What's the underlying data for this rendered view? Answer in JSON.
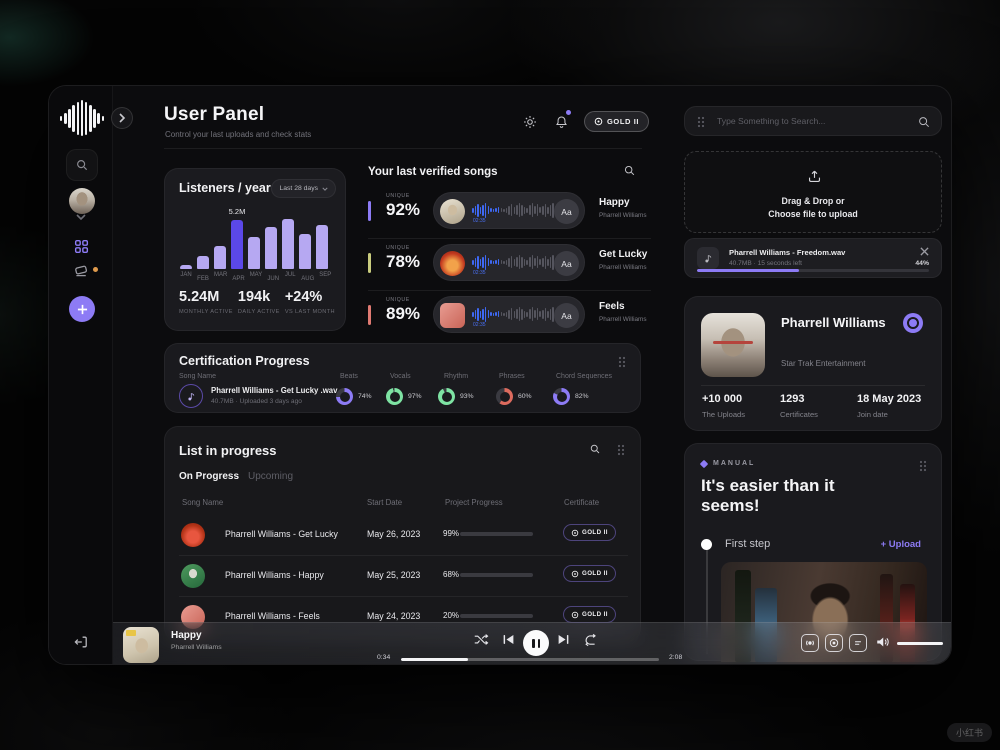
{
  "header": {
    "title": "User Panel",
    "subtitle": "Control your last uploads and check stats",
    "badge": "GOLD II"
  },
  "listeners": {
    "title": "Listeners / year",
    "range": "Last 28 days",
    "chart_data": {
      "type": "bar",
      "categories": [
        "JAN",
        "FEB",
        "MAR",
        "APR",
        "MAY",
        "JUN",
        "JUL",
        "AUG",
        "SEP"
      ],
      "values": [
        0.4,
        1.4,
        2.5,
        5.2,
        3.4,
        4.4,
        5.3,
        3.7,
        4.7
      ],
      "unit": "M listeners",
      "highlight_index": 3,
      "highlight_label": "5.2M",
      "title": "Listeners / year",
      "xlabel": "",
      "ylabel": "",
      "ylim": [
        0,
        5.5
      ],
      "grid": false,
      "bar_color": "#B6A8F2",
      "highlight_color": "#5B48E8"
    },
    "stats": [
      {
        "value": "5.24M",
        "label": "MONTHLY ACTIVE"
      },
      {
        "value": "194k",
        "label": "DAILY ACTIVE"
      },
      {
        "value": "+24%",
        "label": "VS LAST MONTH"
      }
    ]
  },
  "verified": {
    "title": "Your last verified songs",
    "unique_label": "UNIQUE",
    "aa_label": "Aa",
    "songs": [
      {
        "unique": "92%",
        "time": "02:35",
        "title": "Happy",
        "artist": "Pharrell Williams",
        "accent": "#8D7BF5"
      },
      {
        "unique": "78%",
        "time": "02:35",
        "title": "Get Lucky",
        "artist": "Pharrell Williams",
        "accent": "#C9CC7E"
      },
      {
        "unique": "89%",
        "time": "02:35",
        "title": "Feels",
        "artist": "Pharrell Williams",
        "accent": "#E07A72"
      }
    ]
  },
  "certification": {
    "title": "Certification Progress",
    "song_col": "Song Name",
    "file": "Pharrell Williams - Get Lucky .wav",
    "meta": "40.7MB · Uploaded 3 days ago",
    "rings": [
      {
        "label": "Beats",
        "pct": 74,
        "pct_label": "74%",
        "color": "#8D7BF5"
      },
      {
        "label": "Vocals",
        "pct": 97,
        "pct_label": "97%",
        "color": "#7EE3A3"
      },
      {
        "label": "Rhythm",
        "pct": 93,
        "pct_label": "93%",
        "color": "#7EE3A3"
      },
      {
        "label": "Phrases",
        "pct": 60,
        "pct_label": "60%",
        "color": "#DD6B5E"
      },
      {
        "label": "Chord Sequences",
        "pct": 82,
        "pct_label": "82%",
        "color": "#8D7BF5"
      }
    ]
  },
  "list": {
    "title": "List in progress",
    "tabs": [
      "On Progress",
      "Upcoming"
    ],
    "columns": [
      "Song Name",
      "Start Date",
      "Project Progress",
      "Certificate"
    ],
    "rows": [
      {
        "song": "Pharrell Williams - Get Lucky",
        "date": "May 26, 2023",
        "pct": 99,
        "pct_label": "99%",
        "color": "#C7B9F2",
        "badge": "GOLD II"
      },
      {
        "song": "Pharrell Williams - Happy",
        "date": "May 25, 2023",
        "pct": 68,
        "pct_label": "68%",
        "color": "#8BE6A8",
        "badge": "GOLD II"
      },
      {
        "song": "Pharrell Williams - Feels",
        "date": "May 24, 2023",
        "pct": 20,
        "pct_label": "20%",
        "color": "#C7B9F2",
        "badge": "GOLD II"
      }
    ]
  },
  "search": {
    "placeholder": "Type Something to Search..."
  },
  "upload": {
    "line1": "Drag & Drop or",
    "line2": "Choose file to upload",
    "file": "Pharrell Williams - Freedom.wav",
    "meta": "40.7MB · 15 seconds left",
    "pct_label": "44%",
    "pct": 44
  },
  "profile": {
    "name": "Pharrell Williams",
    "org": "Star Trak Entertainment",
    "stats": [
      {
        "value": "+10 000",
        "label": "The Uploads"
      },
      {
        "value": "1293",
        "label": "Certificates"
      },
      {
        "value": "18 May 2023",
        "label": "Join date"
      }
    ]
  },
  "manual": {
    "tag": "MANUAL",
    "heading": "It's easier than it seems!",
    "step": "First step",
    "action": "+ Upload"
  },
  "player": {
    "title": "Happy",
    "artist": "Pharrell Williams",
    "elapsed": "0:34",
    "duration": "2:08",
    "progress_pct": 26,
    "volume_pct": 100
  },
  "watermark": "小红书"
}
